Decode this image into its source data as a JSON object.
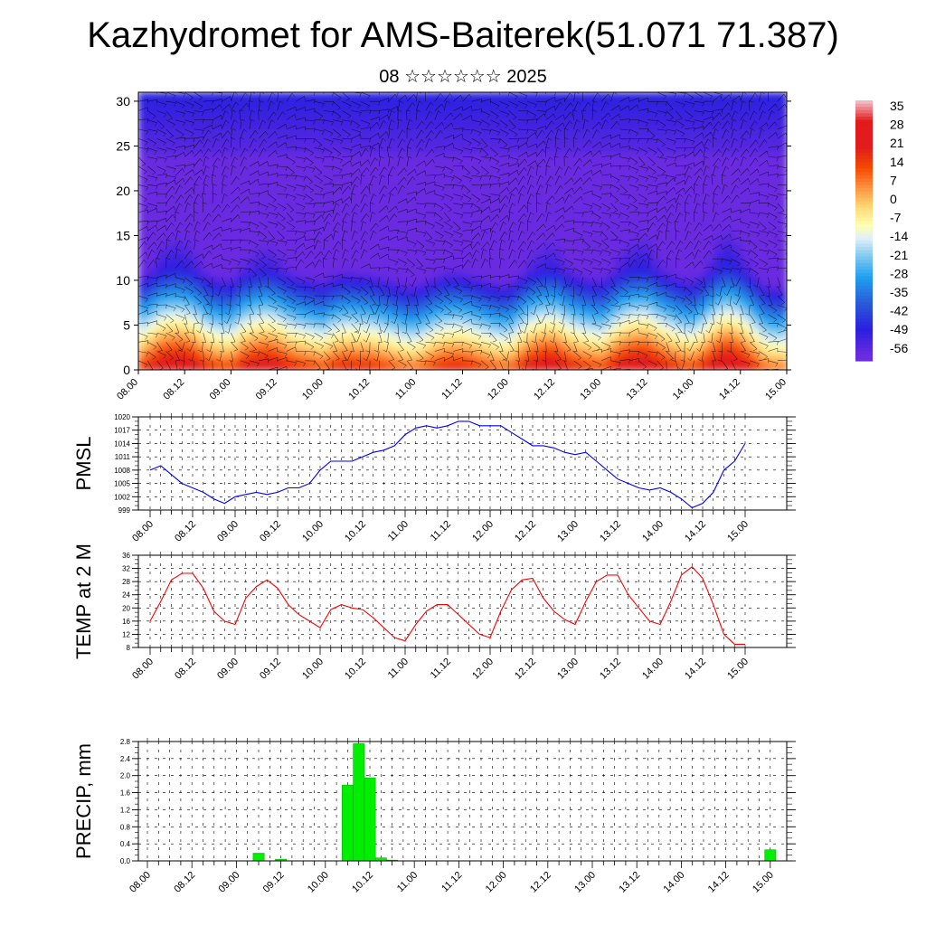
{
  "header": {
    "title": "Kazhydromet for AMS-Baiterek(51.071 71.387)",
    "subtitle": "08 ☆☆☆☆☆☆ 2025"
  },
  "chart_data": [
    {
      "type": "heatmap",
      "title": "",
      "xlabel": "",
      "ylabel": "",
      "x_ticks": [
        "08.00",
        "08.12",
        "09.00",
        "09.12",
        "10.00",
        "10.12",
        "11.00",
        "11.12",
        "12.00",
        "12.12",
        "13.00",
        "13.12",
        "14.00",
        "14.12",
        "15.00"
      ],
      "y_ticks": [
        0,
        5,
        10,
        15,
        20,
        25,
        30
      ],
      "ylim": [
        0,
        31
      ],
      "colorbar": {
        "labels": [
          "35",
          "28",
          "21",
          "14",
          "7",
          "0",
          "-7",
          "-14",
          "-21",
          "-28",
          "-35",
          "-42",
          "-49",
          "-56"
        ],
        "stops": [
          {
            "value": 38,
            "color": "#f4c6d0"
          },
          {
            "value": 30,
            "color": "#e31a1c"
          },
          {
            "value": 20,
            "color": "#e21c1c"
          },
          {
            "value": 12,
            "color": "#f54a00"
          },
          {
            "value": 5,
            "color": "#fd8d3c"
          },
          {
            "value": -3,
            "color": "#fed976"
          },
          {
            "value": -10,
            "color": "#ffffb2"
          },
          {
            "value": -15,
            "color": "#e0f0f8"
          },
          {
            "value": -22,
            "color": "#7fc8f0"
          },
          {
            "value": -30,
            "color": "#1ea0f0"
          },
          {
            "value": -40,
            "color": "#2a5ad8"
          },
          {
            "value": -50,
            "color": "#2a1fe0"
          },
          {
            "value": -60,
            "color": "#6a2ce0"
          }
        ]
      },
      "wind_barbs": true
    },
    {
      "type": "line",
      "title": "",
      "ylabel": "PMSL",
      "x_ticks": [
        "08.00",
        "08.12",
        "09.00",
        "09.12",
        "10.00",
        "10.12",
        "11.00",
        "11.12",
        "12.00",
        "12.12",
        "13.00",
        "13.12",
        "14.00",
        "14.12",
        "15.00"
      ],
      "y_ticks": [
        999,
        1002,
        1005,
        1008,
        1011,
        1014,
        1017,
        1020
      ],
      "ylim": [
        999,
        1020
      ],
      "grid": true,
      "series": [
        {
          "color": "#0000ff",
          "x": [
            0,
            1,
            2,
            3,
            4,
            5,
            6,
            7,
            8,
            9,
            10,
            11,
            12,
            13,
            14,
            15,
            16,
            17,
            18,
            19,
            20,
            21,
            22,
            23,
            24,
            25,
            26,
            27,
            28,
            29,
            30,
            31,
            32,
            33,
            34,
            35,
            36,
            37,
            38,
            39,
            40,
            41,
            42,
            43,
            44,
            45,
            46,
            47,
            48,
            49,
            50,
            51,
            52,
            53,
            54,
            55,
            56
          ],
          "values": [
            1008,
            1009,
            1007,
            1005,
            1004,
            1003,
            1001.5,
            1000.5,
            1002,
            1002.5,
            1003,
            1002.5,
            1003,
            1004,
            1004,
            1005,
            1008,
            1010,
            1010,
            1010,
            1011,
            1012,
            1012.5,
            1013.5,
            1016,
            1017.5,
            1018,
            1017.5,
            1018,
            1019,
            1019,
            1018,
            1018,
            1018,
            1016.5,
            1015,
            1013.5,
            1013.5,
            1013,
            1012,
            1011.5,
            1012,
            1010,
            1008,
            1006,
            1005,
            1004,
            1003.5,
            1004,
            1003,
            1001.5,
            999.5,
            1000.5,
            1003,
            1008,
            1010,
            1014
          ]
        }
      ]
    },
    {
      "type": "line",
      "title": "",
      "ylabel": "TEMP at 2 M",
      "x_ticks": [
        "08.00",
        "08.12",
        "09.00",
        "09.12",
        "10.00",
        "10.12",
        "11.00",
        "11.12",
        "12.00",
        "12.12",
        "13.00",
        "13.12",
        "14.00",
        "14.12",
        "15.00"
      ],
      "y_ticks": [
        8,
        12,
        16,
        20,
        24,
        28,
        32,
        36
      ],
      "ylim": [
        8,
        36
      ],
      "grid": true,
      "series": [
        {
          "color": "#ff0000",
          "x": [
            0,
            1,
            2,
            3,
            4,
            5,
            6,
            7,
            8,
            9,
            10,
            11,
            12,
            13,
            14,
            15,
            16,
            17,
            18,
            19,
            20,
            21,
            22,
            23,
            24,
            25,
            26,
            27,
            28,
            29,
            30,
            31,
            32,
            33,
            34,
            35,
            36,
            37,
            38,
            39,
            40,
            41,
            42,
            43,
            44,
            45,
            46,
            47,
            48,
            49,
            50,
            51,
            52,
            53,
            54,
            55,
            56
          ],
          "values": [
            16,
            22,
            28.5,
            30.5,
            30.5,
            26,
            19,
            16,
            15,
            23,
            26.5,
            28.5,
            26,
            21,
            18,
            16,
            14,
            19.5,
            21,
            20,
            19.5,
            17,
            14,
            11,
            10,
            15,
            19,
            21,
            21,
            18,
            15,
            12,
            11,
            19,
            25.5,
            28.5,
            29,
            23,
            19,
            16.5,
            15,
            22,
            28,
            30,
            30,
            24,
            20,
            16,
            15,
            22,
            30,
            32.5,
            29,
            21,
            12,
            9,
            9
          ]
        }
      ]
    },
    {
      "type": "bar",
      "title": "",
      "ylabel": "PRECIP, mm",
      "x_ticks": [
        "08.00",
        "08.12",
        "09.00",
        "09.12",
        "10.00",
        "10.12",
        "11.00",
        "11.12",
        "12.00",
        "12.12",
        "13.00",
        "13.12",
        "14.00",
        "14.12",
        "15.00"
      ],
      "y_ticks": [
        "0.0",
        "0.4",
        "0.8",
        "1.2",
        "1.6",
        "2.0",
        "2.4",
        "2.8"
      ],
      "ylim": [
        0,
        2.8
      ],
      "grid": true,
      "color": "#00ee00",
      "x": [
        10,
        12,
        18,
        19,
        20,
        21,
        22,
        56
      ],
      "values": [
        0.18,
        0.04,
        1.78,
        2.75,
        1.95,
        0.07,
        0.02,
        0.26
      ]
    }
  ]
}
